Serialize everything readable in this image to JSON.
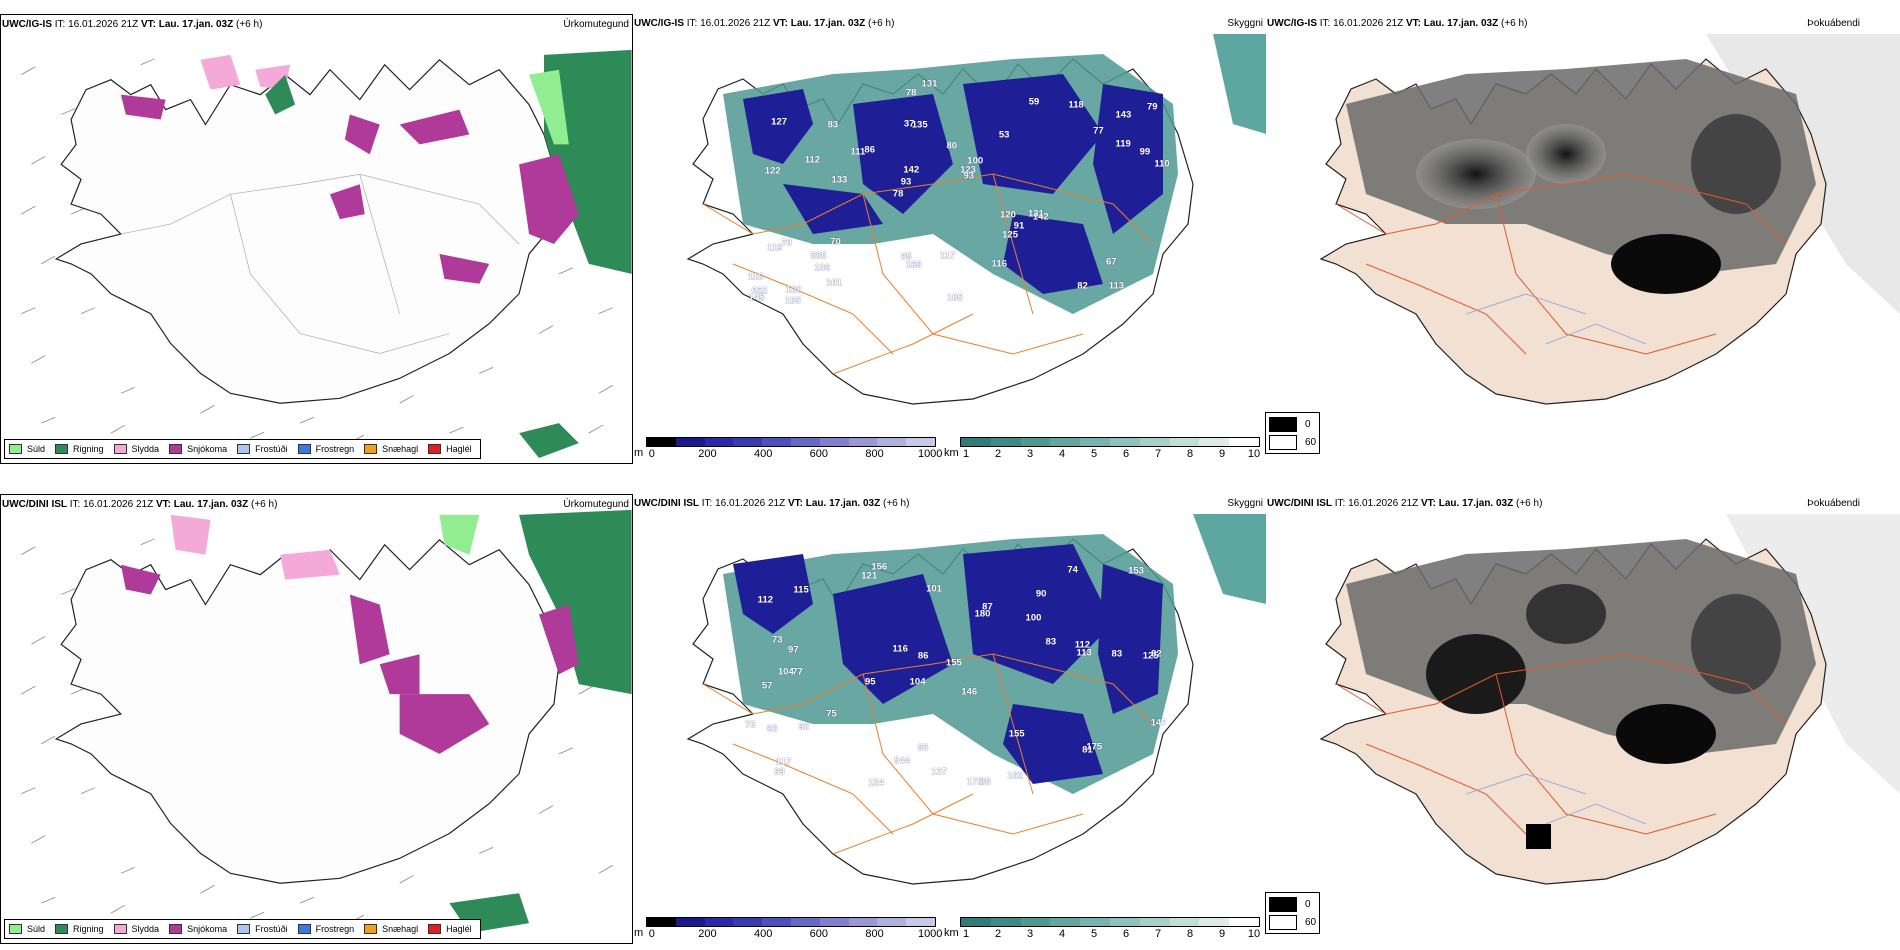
{
  "header": {
    "row1_model": "UWC/IG-IS",
    "row2_model": "UWC/DINI ISL",
    "it_label": "IT:",
    "it_value": "16.01.2026 21Z",
    "vt_label": "VT:",
    "vt_value": "Lau. 17.jan. 03Z",
    "lead": "(+6 h)"
  },
  "panel_titles": {
    "precip_type": "Úrkomutegund",
    "visibility": "Skyggni",
    "fog_index": "Þokuábendi"
  },
  "precip_legend": [
    {
      "label": "Súld",
      "color": "#90ee90"
    },
    {
      "label": "Rigning",
      "color": "#2e8b57"
    },
    {
      "label": "Slydda",
      "color": "#f4a9d8"
    },
    {
      "label": "Snjókoma",
      "color": "#b03a9a"
    },
    {
      "label": "Frostúði",
      "color": "#a8c8f0"
    },
    {
      "label": "Frostregn",
      "color": "#3a7bd5"
    },
    {
      "label": "Snæhagl",
      "color": "#f0a020"
    },
    {
      "label": "Haglél",
      "color": "#e02020"
    }
  ],
  "ceiling_bar": {
    "unit": "m",
    "ticks": [
      "0",
      "200",
      "400",
      "600",
      "800",
      "1000"
    ],
    "colors": [
      "#000000",
      "#1a1a8c",
      "#2a2aa8",
      "#3a3ab4",
      "#5050bc",
      "#6868c4",
      "#8080cc",
      "#9898d4",
      "#b0b0dc",
      "#c8c8e8"
    ]
  },
  "visibility_bar": {
    "unit": "km",
    "ticks": [
      "1",
      "2",
      "3",
      "4",
      "5",
      "6",
      "7",
      "8",
      "9",
      "10"
    ],
    "colors": [
      "#2e7d7a",
      "#3e8a87",
      "#4f9893",
      "#62a6a1",
      "#78b4ae",
      "#8fc2bc",
      "#a8d0cb",
      "#c2ded9",
      "#dcece9",
      "#ffffff"
    ]
  },
  "fog_legend": [
    {
      "label": "0",
      "color": "#000000"
    },
    {
      "label": "60",
      "color": "#ffffff"
    }
  ],
  "row1_ceiling_labels": [
    "113",
    "122",
    "143",
    "78",
    "53",
    "102",
    "37",
    "80",
    "70",
    "86",
    "116",
    "106",
    "135",
    "100",
    "142",
    "127",
    "78",
    "110",
    "120",
    "119",
    "93",
    "95",
    "142",
    "83",
    "59",
    "70",
    "82",
    "67",
    "131",
    "105",
    "111",
    "112",
    "125",
    "101",
    "99",
    "123",
    "652",
    "168",
    "93",
    "119",
    "77",
    "79",
    "91",
    "116",
    "585",
    "105",
    "145",
    "117",
    "118",
    "131",
    "133"
  ],
  "row2_ceiling_labels": [
    "156",
    "90",
    "125",
    "104",
    "146",
    "77",
    "112",
    "100",
    "57",
    "180",
    "155",
    "99",
    "121",
    "95",
    "172",
    "85",
    "95",
    "74",
    "83",
    "75",
    "97",
    "104",
    "82",
    "83",
    "73",
    "73",
    "86",
    "113",
    "175",
    "93",
    "81",
    "87",
    "92",
    "116",
    "155",
    "147",
    "112",
    "544",
    "153",
    "101",
    "117",
    "124",
    "152",
    "115",
    "127"
  ]
}
